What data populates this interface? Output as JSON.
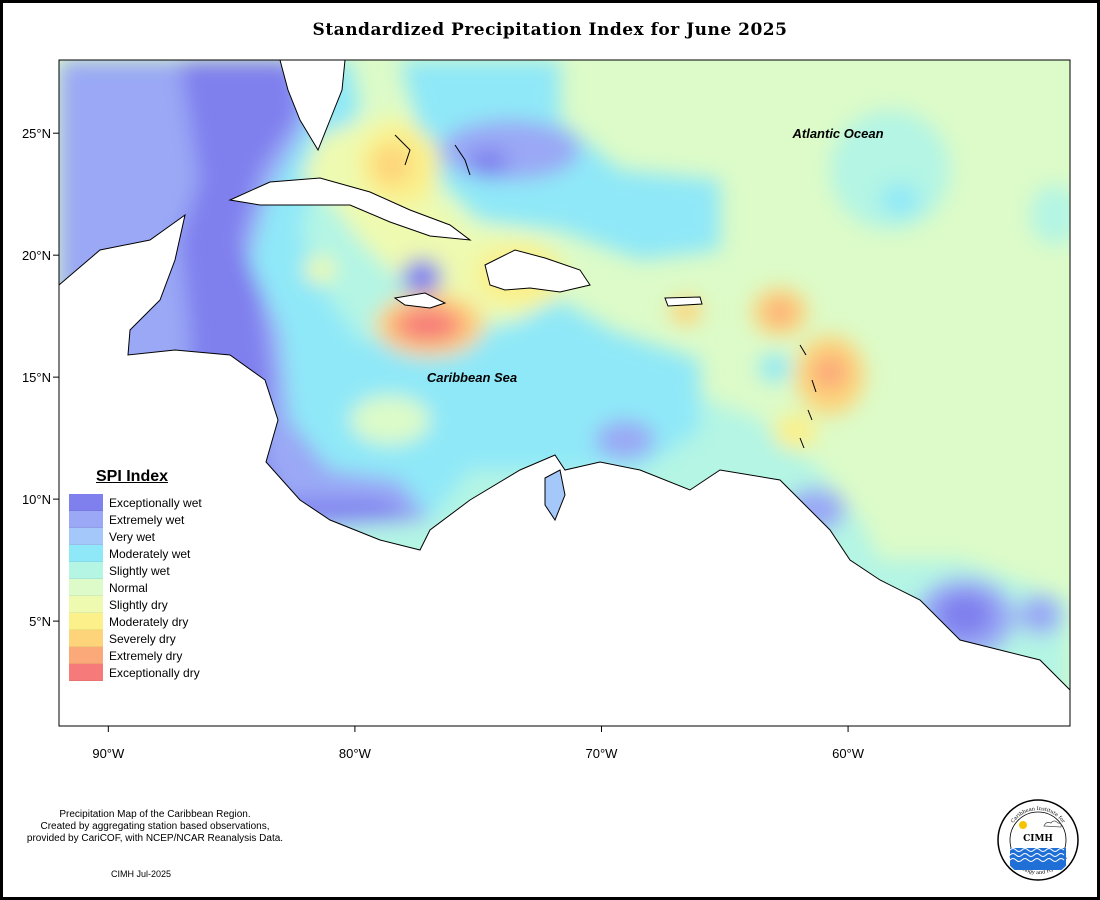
{
  "title": "Standardized Precipitation Index for June 2025",
  "map": {
    "labels": {
      "ocean": "Atlantic Ocean",
      "sea": "Caribbean Sea"
    },
    "lon_ticks": [
      "90°W",
      "80°W",
      "70°W",
      "60°W"
    ],
    "lat_ticks": [
      "25°N",
      "20°N",
      "15°N",
      "10°N",
      "5°N"
    ],
    "extent": {
      "lon": [
        -92,
        -51
      ],
      "lat": [
        0.7,
        28
      ]
    }
  },
  "legend": {
    "title": "SPI Index",
    "items": [
      {
        "label": "Exceptionally wet",
        "color": "#7f7fee"
      },
      {
        "label": "Extremely wet",
        "color": "#9aa8f5"
      },
      {
        "label": "Very wet",
        "color": "#a5c8fa"
      },
      {
        "label": "Moderately wet",
        "color": "#8fe8f8"
      },
      {
        "label": "Slightly wet",
        "color": "#b4f5e4"
      },
      {
        "label": "Normal",
        "color": "#dcfbc8"
      },
      {
        "label": "Slightly dry",
        "color": "#eefab0"
      },
      {
        "label": "Moderately dry",
        "color": "#fbf08a"
      },
      {
        "label": "Severely dry",
        "color": "#fdd47a"
      },
      {
        "label": "Extremely dry",
        "color": "#fca97a"
      },
      {
        "label": "Exceptionally dry",
        "color": "#f77a7a"
      }
    ]
  },
  "credit": {
    "lines": [
      "Precipitation Map of the Caribbean Region.",
      "Created by aggregating station based observations,",
      "provided by CariCOF, with NCEP/NCAR Reanalysis Data."
    ],
    "date": "CIMH Jul-2025"
  },
  "logo": {
    "top_text": "Caribbean Institute for",
    "center_text": "CIMH",
    "bottom_text": "Meteorology and Hydrology"
  }
}
